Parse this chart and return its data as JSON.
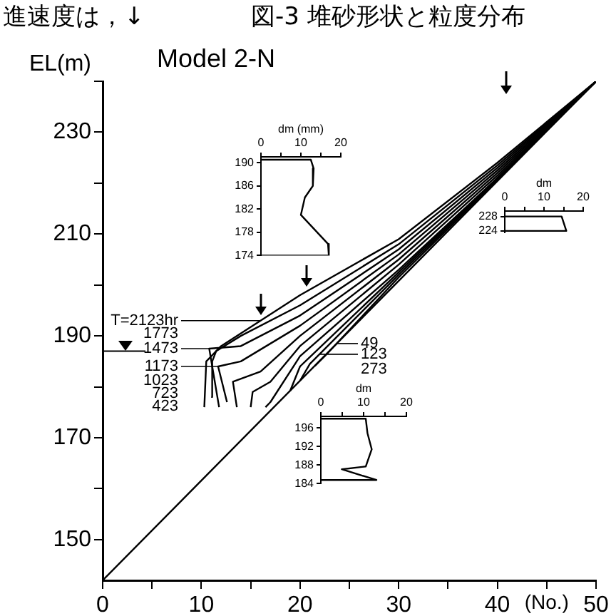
{
  "chart_data": [
    {
      "type": "line",
      "title": "図-3 堆砂形状と粒度分布",
      "subtitle": "Model 2-N",
      "xlabel": "(No.)",
      "ylabel": "EL(m)",
      "annotations": [
        "進速度は，↓",
        {
          "text": "T=2123hr",
          "x": 16,
          "y": 193
        },
        "1773",
        {
          "text": "1473",
          "x": 10.8,
          "y": 187.5
        },
        {
          "text": "1173",
          "x": 11.7,
          "y": 184
        },
        "1023",
        "723",
        "423",
        {
          "text": "49",
          "x": 23.7,
          "y": 188.5
        },
        {
          "text": "123",
          "x": 22,
          "y": 186.4
        },
        "273"
      ],
      "xlim": [
        0,
        50
      ],
      "xticks": [
        0,
        {
          "value": 5,
          "label": null
        },
        10,
        {
          "value": 15,
          "label": null
        },
        20,
        {
          "value": 25,
          "label": null
        },
        30,
        {
          "value": 35,
          "label": null
        },
        40,
        {
          "value": 45,
          "label": null
        },
        50
      ],
      "ylim": [
        142,
        240
      ],
      "yticks": [
        150,
        {
          "value": 160,
          "label": null
        },
        170,
        {
          "value": 180,
          "label": null
        },
        190,
        {
          "value": 200,
          "label": null
        },
        210,
        {
          "value": 220,
          "label": null
        },
        230,
        {
          "value": 240,
          "label": null
        }
      ],
      "ref_lines": [
        {
          "axis": "y",
          "value": 187
        }
      ],
      "series": [
        {
          "color": "#000000",
          "x": [
            0,
            50
          ],
          "values": [
            142,
            240
          ]
        },
        {
          "color": "#000000",
          "x": [
            10.3,
            10.5,
            12,
            16,
            20,
            30,
            40,
            50
          ],
          "values": [
            176,
            185,
            188,
            193,
            198,
            209,
            224,
            240
          ]
        },
        {
          "color": "#000000",
          "x": [
            11,
            11.1,
            11.5,
            14,
            20,
            30,
            40,
            50
          ],
          "values": [
            178,
            185,
            187,
            190,
            196,
            208,
            223.5,
            240
          ]
        },
        {
          "color": "#000000",
          "x": [
            11.8,
            10.8,
            14,
            20,
            30,
            40,
            50
          ],
          "values": [
            176,
            187.5,
            188,
            194,
            207,
            223,
            240
          ]
        },
        {
          "color": "#000000",
          "x": [
            12.6,
            11.7,
            14,
            20,
            30,
            40,
            50
          ],
          "values": [
            177,
            184,
            185,
            192,
            206,
            222.5,
            240
          ]
        },
        {
          "color": "#000000",
          "x": [
            13.6,
            13.2,
            16,
            20,
            30,
            40,
            50
          ],
          "values": [
            176,
            181,
            183,
            190,
            205,
            222,
            240
          ]
        },
        {
          "color": "#000000",
          "x": [
            15,
            15.2,
            17,
            20,
            30,
            40,
            50
          ],
          "values": [
            176,
            179,
            181,
            188,
            204,
            221.5,
            240
          ]
        },
        {
          "color": "#000000",
          "x": [
            16.5,
            17,
            20,
            30,
            40,
            50
          ],
          "values": [
            176,
            177,
            186,
            203,
            221,
            240
          ]
        },
        {
          "color": "#000000",
          "x": [
            19,
            20,
            30,
            40,
            50
          ],
          "values": [
            179.2,
            184,
            202.5,
            221,
            240
          ]
        },
        {
          "color": "#000000",
          "x": [
            20,
            21,
            30,
            40,
            50
          ],
          "values": [
            181.2,
            184.5,
            202,
            220.8,
            240
          ]
        },
        {
          "color": "#000000",
          "x": [
            21.5,
            22.5,
            30,
            40,
            50
          ],
          "values": [
            184.1,
            186,
            201.5,
            220.6,
            240
          ]
        }
      ]
    },
    {
      "type": "line",
      "xlabel": "dm (mm)",
      "xlim": [
        0,
        20
      ],
      "xticks": [
        0,
        {
          "value": 5,
          "label": null
        },
        10,
        {
          "value": 15,
          "label": null
        },
        20
      ],
      "ylim": [
        174,
        191
      ],
      "yticks": [
        174,
        178,
        182,
        186,
        190
      ],
      "color": "#000000",
      "x": [
        0,
        12.5,
        13.2,
        13,
        11,
        10,
        16.8,
        17,
        0
      ],
      "values": [
        190.5,
        190.5,
        189,
        186,
        184,
        181,
        176,
        174,
        174
      ]
    },
    {
      "type": "line",
      "xlabel": "dm",
      "xlim": [
        0,
        20
      ],
      "xticks": [
        0,
        {
          "value": 5,
          "label": null
        },
        10,
        {
          "value": 15,
          "label": null
        },
        20
      ],
      "ylim": [
        223.5,
        229.5
      ],
      "yticks": [
        224,
        228
      ],
      "color": "#000000",
      "x": [
        0,
        14.5,
        15.7,
        0
      ],
      "values": [
        228,
        228,
        224,
        224
      ]
    },
    {
      "type": "line",
      "xlabel": "dm",
      "xlim": [
        0,
        20
      ],
      "xticks": [
        0,
        {
          "value": 5,
          "label": null
        },
        10,
        {
          "value": 15,
          "label": null
        },
        20
      ],
      "ylim": [
        184,
        198.5
      ],
      "yticks": [
        184,
        188,
        192,
        196
      ],
      "color": "#000000",
      "x": [
        0,
        10.5,
        10.9,
        11.9,
        10.5,
        4.9,
        13,
        0
      ],
      "values": [
        198,
        198,
        194.9,
        191.4,
        187.7,
        187.1,
        184.8,
        184.8
      ]
    }
  ]
}
